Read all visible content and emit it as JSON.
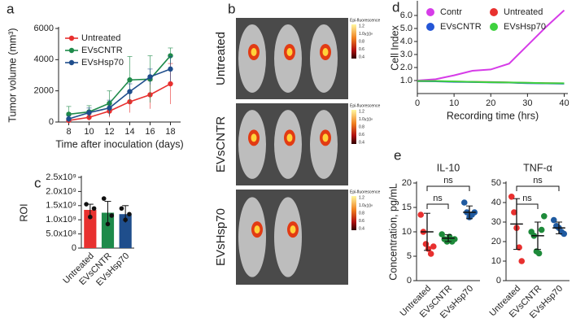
{
  "chart_data": [
    {
      "type": "line",
      "panel": "a",
      "ylabel": "Tumor volume (mm³)",
      "xlabel": "Time after inoculation (days)",
      "x": [
        8,
        10,
        12,
        14,
        16,
        18
      ],
      "xlim": [
        7,
        19
      ],
      "xticks": [
        8,
        10,
        12,
        14,
        16,
        18
      ],
      "ylim": [
        0,
        6000
      ],
      "yticks": [
        0,
        2000,
        4000,
        6000
      ],
      "markers": true,
      "legend": "upper left",
      "series": [
        {
          "name": "Untreated",
          "color": "#e8302f",
          "values": [
            100,
            300,
            700,
            1300,
            1750,
            2450
          ],
          "errors": [
            100,
            200,
            400,
            700,
            900,
            1300
          ]
        },
        {
          "name": "EVsCNTR",
          "color": "#1e8a4a",
          "values": [
            500,
            650,
            1200,
            2700,
            2750,
            4250
          ],
          "errors": [
            500,
            400,
            800,
            1500,
            1500,
            500
          ]
        },
        {
          "name": "EVsHsp70",
          "color": "#1f4e8c",
          "values": [
            200,
            600,
            900,
            1950,
            2900,
            3400
          ],
          "errors": [
            200,
            300,
            500,
            500,
            500,
            800
          ]
        }
      ]
    },
    {
      "type": "image",
      "panel": "b",
      "rows": [
        "Untreated",
        "EVsCNTR",
        "EVsHsp70"
      ],
      "colorbar": {
        "title": "Epi-fluorescence",
        "unit": "x10⁸",
        "ticks": [
          "1.2",
          "1.0",
          "0.8",
          "0.6",
          "0.4"
        ]
      }
    },
    {
      "type": "bar",
      "panel": "c",
      "ylabel": "ROI",
      "categories": [
        "Untreated",
        "EVsCNTR",
        "EVsHsp70"
      ],
      "values": [
        1350000000,
        1250000000,
        1200000000
      ],
      "errors": [
        200000000,
        400000000,
        300000000
      ],
      "points": [
        [
          1550000000,
          1100000000,
          1400000000
        ],
        [
          1750000000,
          850000000,
          1150000000
        ],
        [
          1400000000,
          1000000000,
          1200000000
        ]
      ],
      "colors": [
        "#e8302f",
        "#1e8a4a",
        "#1f4e8c"
      ],
      "ylim": [
        0,
        2500000000
      ],
      "yticks": [
        0,
        {
          "value": 500000000,
          "label": "5.0x10⁸"
        },
        {
          "value": 1000000000,
          "label": "1.0x10⁹"
        },
        {
          "value": 1500000000,
          "label": "1.5x10⁹"
        },
        {
          "value": 2000000000,
          "label": "2.0x10⁹"
        },
        {
          "value": 2500000000,
          "label": "2.5x10⁹"
        }
      ]
    },
    {
      "type": "line",
      "panel": "d",
      "ylabel": "Cell Index",
      "xlabel": "Recording time (hrs)",
      "x": [
        0,
        5,
        10,
        15,
        20,
        25,
        30,
        35,
        40
      ],
      "xlim": [
        0,
        41
      ],
      "xticks": [
        0,
        10,
        20,
        30,
        40
      ],
      "ylim": [
        0,
        7
      ],
      "yticks": [
        {
          "value": 1,
          "label": "1.0"
        },
        {
          "value": 2,
          "label": "2.0"
        },
        {
          "value": 3,
          "label": "3.0"
        },
        {
          "value": 4,
          "label": "4.0"
        },
        {
          "value": 5,
          "label": "5.0"
        },
        {
          "value": 6,
          "label": "6.0"
        }
      ],
      "markers": false,
      "legend": "upper left",
      "series": [
        {
          "name": "Contr",
          "color": "#d63ce8",
          "values": [
            1.0,
            1.1,
            1.4,
            1.75,
            1.85,
            2.3,
            3.7,
            5.1,
            6.4
          ]
        },
        {
          "name": "Untreated",
          "color": "#e8312f",
          "values": [
            0.95,
            0.95,
            0.92,
            0.9,
            0.88,
            0.85,
            0.82,
            0.8,
            0.78
          ]
        },
        {
          "name": "EVsCNTR",
          "color": "#2456d6",
          "values": [
            0.95,
            0.94,
            0.9,
            0.88,
            0.86,
            0.84,
            0.8,
            0.78,
            0.76
          ]
        },
        {
          "name": "EVsHsp70",
          "color": "#3ed13e",
          "values": [
            0.97,
            0.96,
            0.93,
            0.9,
            0.87,
            0.85,
            0.83,
            0.8,
            0.79
          ]
        }
      ]
    },
    {
      "type": "dot",
      "panel": "e",
      "title": "IL-10",
      "ylabel": "Concentration, pg/mL",
      "categories": [
        "Untreated",
        "EVsCNTR",
        "EVsHsp70"
      ],
      "values": [
        10,
        8.7,
        14
      ],
      "errors": [
        3.8,
        0.7,
        1.3
      ],
      "points": [
        [
          13.5,
          10,
          7.5,
          6.5,
          5.5,
          7
        ],
        [
          9.5,
          8.5,
          8,
          9,
          8,
          8.5
        ],
        [
          16,
          14,
          13,
          13.5,
          14
        ]
      ],
      "colors": [
        "#e8302f",
        "#1e8a3a",
        "#1f5aa0"
      ],
      "ylim": [
        0,
        20
      ],
      "yticks": [
        0,
        5,
        10,
        15,
        20
      ],
      "annotations": [
        "ns",
        "ns"
      ]
    },
    {
      "type": "dot",
      "title": "TNF-α",
      "categories": [
        "Untreated",
        "EVsCNTR",
        "EVsHsp70"
      ],
      "values": [
        29,
        23,
        27
      ],
      "errors": [
        13,
        7,
        3
      ],
      "points": [
        [
          43,
          35,
          27,
          17,
          10
        ],
        [
          25,
          23,
          15,
          14,
          26,
          33
        ],
        [
          31,
          28,
          27,
          25,
          24
        ]
      ],
      "colors": [
        "#e8302f",
        "#1e8a3a",
        "#1f5aa0"
      ],
      "ylim": [
        0,
        50
      ],
      "yticks": [
        0,
        10,
        20,
        30,
        40,
        50
      ],
      "annotations": [
        "ns",
        "ns"
      ]
    }
  ]
}
